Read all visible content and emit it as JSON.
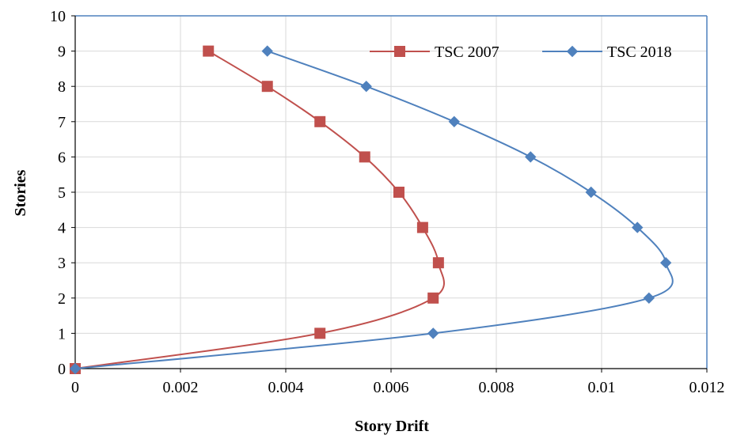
{
  "chart_data": {
    "type": "line",
    "title": "",
    "xlabel": "Story Drift",
    "ylabel": "Stories",
    "xlim": [
      0,
      0.012
    ],
    "ylim": [
      0,
      10
    ],
    "x_ticks": [
      "0",
      "0.002",
      "0.004",
      "0.006",
      "0.008",
      "0.01",
      "0.012"
    ],
    "y_ticks": [
      "0",
      "1",
      "2",
      "3",
      "4",
      "5",
      "6",
      "7",
      "8",
      "9",
      "10"
    ],
    "grid": true,
    "smooth": true,
    "legend_position": "top-right",
    "series": [
      {
        "name": "TSC 2007",
        "color": "#c0504d",
        "marker": "square",
        "points": [
          {
            "x": 0,
            "y": 0
          },
          {
            "x": 0.00465,
            "y": 1
          },
          {
            "x": 0.0068,
            "y": 2
          },
          {
            "x": 0.0069,
            "y": 3
          },
          {
            "x": 0.0066,
            "y": 4
          },
          {
            "x": 0.00615,
            "y": 5
          },
          {
            "x": 0.0055,
            "y": 6
          },
          {
            "x": 0.00465,
            "y": 7
          },
          {
            "x": 0.00365,
            "y": 8
          },
          {
            "x": 0.00253,
            "y": 9
          }
        ]
      },
      {
        "name": "TSC 2018",
        "color": "#4f81bd",
        "marker": "diamond",
        "points": [
          {
            "x": 0,
            "y": 0
          },
          {
            "x": 0.0068,
            "y": 1
          },
          {
            "x": 0.0109,
            "y": 2
          },
          {
            "x": 0.01122,
            "y": 3
          },
          {
            "x": 0.01068,
            "y": 4
          },
          {
            "x": 0.0098,
            "y": 5
          },
          {
            "x": 0.00865,
            "y": 6
          },
          {
            "x": 0.0072,
            "y": 7
          },
          {
            "x": 0.00553,
            "y": 8
          },
          {
            "x": 0.00365,
            "y": 9
          }
        ]
      }
    ]
  }
}
